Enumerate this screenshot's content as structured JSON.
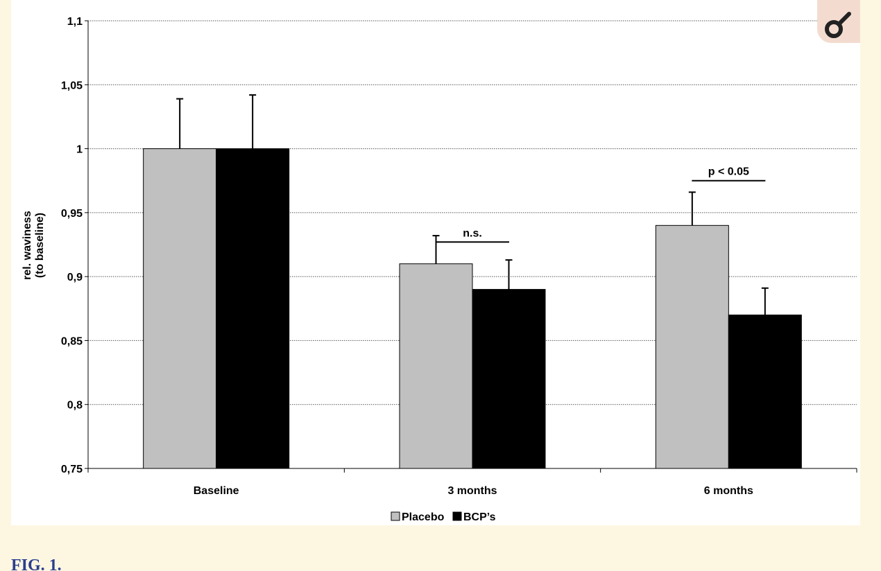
{
  "figure": {
    "caption": "FIG. 1."
  },
  "logo": {
    "icon": "magnifier-icon",
    "background_color": "#f3dccf",
    "mark_color": "#222222"
  },
  "chart_data": {
    "type": "bar",
    "title": "",
    "xlabel": "",
    "ylabel": [
      "rel. waviness",
      "(to baseline)"
    ],
    "ylim": [
      0.75,
      1.1
    ],
    "yticks": [
      0.75,
      0.8,
      0.85,
      0.9,
      0.95,
      1.0,
      1.05,
      1.1
    ],
    "ytick_labels": [
      "0,75",
      "0,8",
      "0,85",
      "0,9",
      "0,95",
      "1",
      "1,05",
      "1,1"
    ],
    "grid": true,
    "categories": [
      "Baseline",
      "3 months",
      "6 months"
    ],
    "series": [
      {
        "name": "Placebo",
        "color": "#c0c0c0",
        "values": [
          1.0,
          0.91,
          0.94
        ],
        "errors": [
          0.039,
          0.022,
          0.026
        ]
      },
      {
        "name": "BCP's",
        "color": "#000000",
        "values": [
          1.0,
          0.89,
          0.87
        ],
        "errors": [
          0.042,
          0.023,
          0.021
        ]
      }
    ],
    "annotations": [
      {
        "category": "3 months",
        "text": "n.s.",
        "y": 0.927
      },
      {
        "category": "6 months",
        "text": "p < 0.05",
        "y": 0.975
      }
    ],
    "legend": {
      "position": "bottom",
      "labels": [
        "Placebo",
        "BCP’s"
      ]
    }
  }
}
